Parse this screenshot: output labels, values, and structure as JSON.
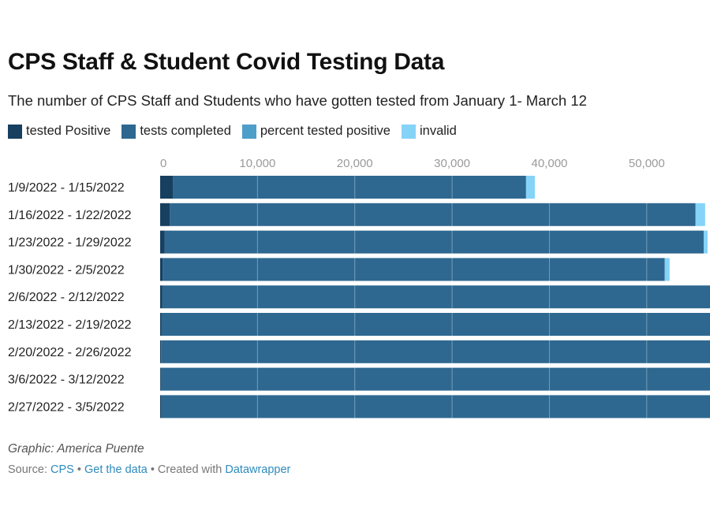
{
  "title": "CPS Staff & Student Covid Testing Data",
  "subtitle": "The number of CPS Staff and Students who have gotten tested from January 1- March 12",
  "credit": "Graphic: America Puente",
  "source": {
    "prefix": "Source:",
    "source_link": "CPS",
    "sep1": "•",
    "data_link": "Get the data",
    "sep2": "• Created with",
    "tool_link": "Datawrapper"
  },
  "colors": {
    "tested_positive": "#173f5f",
    "tests_completed": "#2e6890",
    "percent_tested_positive": "#4d9ec9",
    "invalid": "#86d3f8"
  },
  "chart_data": {
    "type": "bar",
    "orientation": "horizontal",
    "stacked": true,
    "categories": [
      "1/9/2022 - 1/15/2022",
      "1/16/2022 - 1/22/2022",
      "1/23/2022 - 1/29/2022",
      "1/30/2022 - 2/5/2022",
      "2/6/2022 - 2/12/2022",
      "2/13/2022 - 2/19/2022",
      "2/20/2022 - 2/26/2022",
      "3/6/2022 - 3/12/2022",
      "2/27/2022 - 3/5/2022"
    ],
    "series": [
      {
        "name": "tested Positive",
        "color": "#173f5f",
        "values": [
          1300,
          1000,
          450,
          250,
          200,
          120,
          100,
          70,
          80
        ]
      },
      {
        "name": "tests completed",
        "color": "#2e6890",
        "values": [
          36300,
          54000,
          55400,
          51600,
          57000,
          57000,
          57000,
          57000,
          57000
        ]
      },
      {
        "name": "percent tested positive",
        "color": "#4d9ec9",
        "values": [
          0,
          0,
          0,
          0,
          0,
          0,
          0,
          0,
          0
        ]
      },
      {
        "name": "invalid",
        "color": "#86d3f8",
        "values": [
          900,
          1000,
          400,
          500,
          300,
          300,
          300,
          300,
          300
        ]
      }
    ],
    "x_ticks": [
      0,
      10000,
      20000,
      30000,
      40000,
      50000
    ],
    "x_tick_labels": [
      "0",
      "10,000",
      "20,000",
      "30,000",
      "40,000",
      "50,000"
    ],
    "xlim": [
      0,
      56500
    ],
    "grid": true,
    "legend_position": "top-left"
  }
}
